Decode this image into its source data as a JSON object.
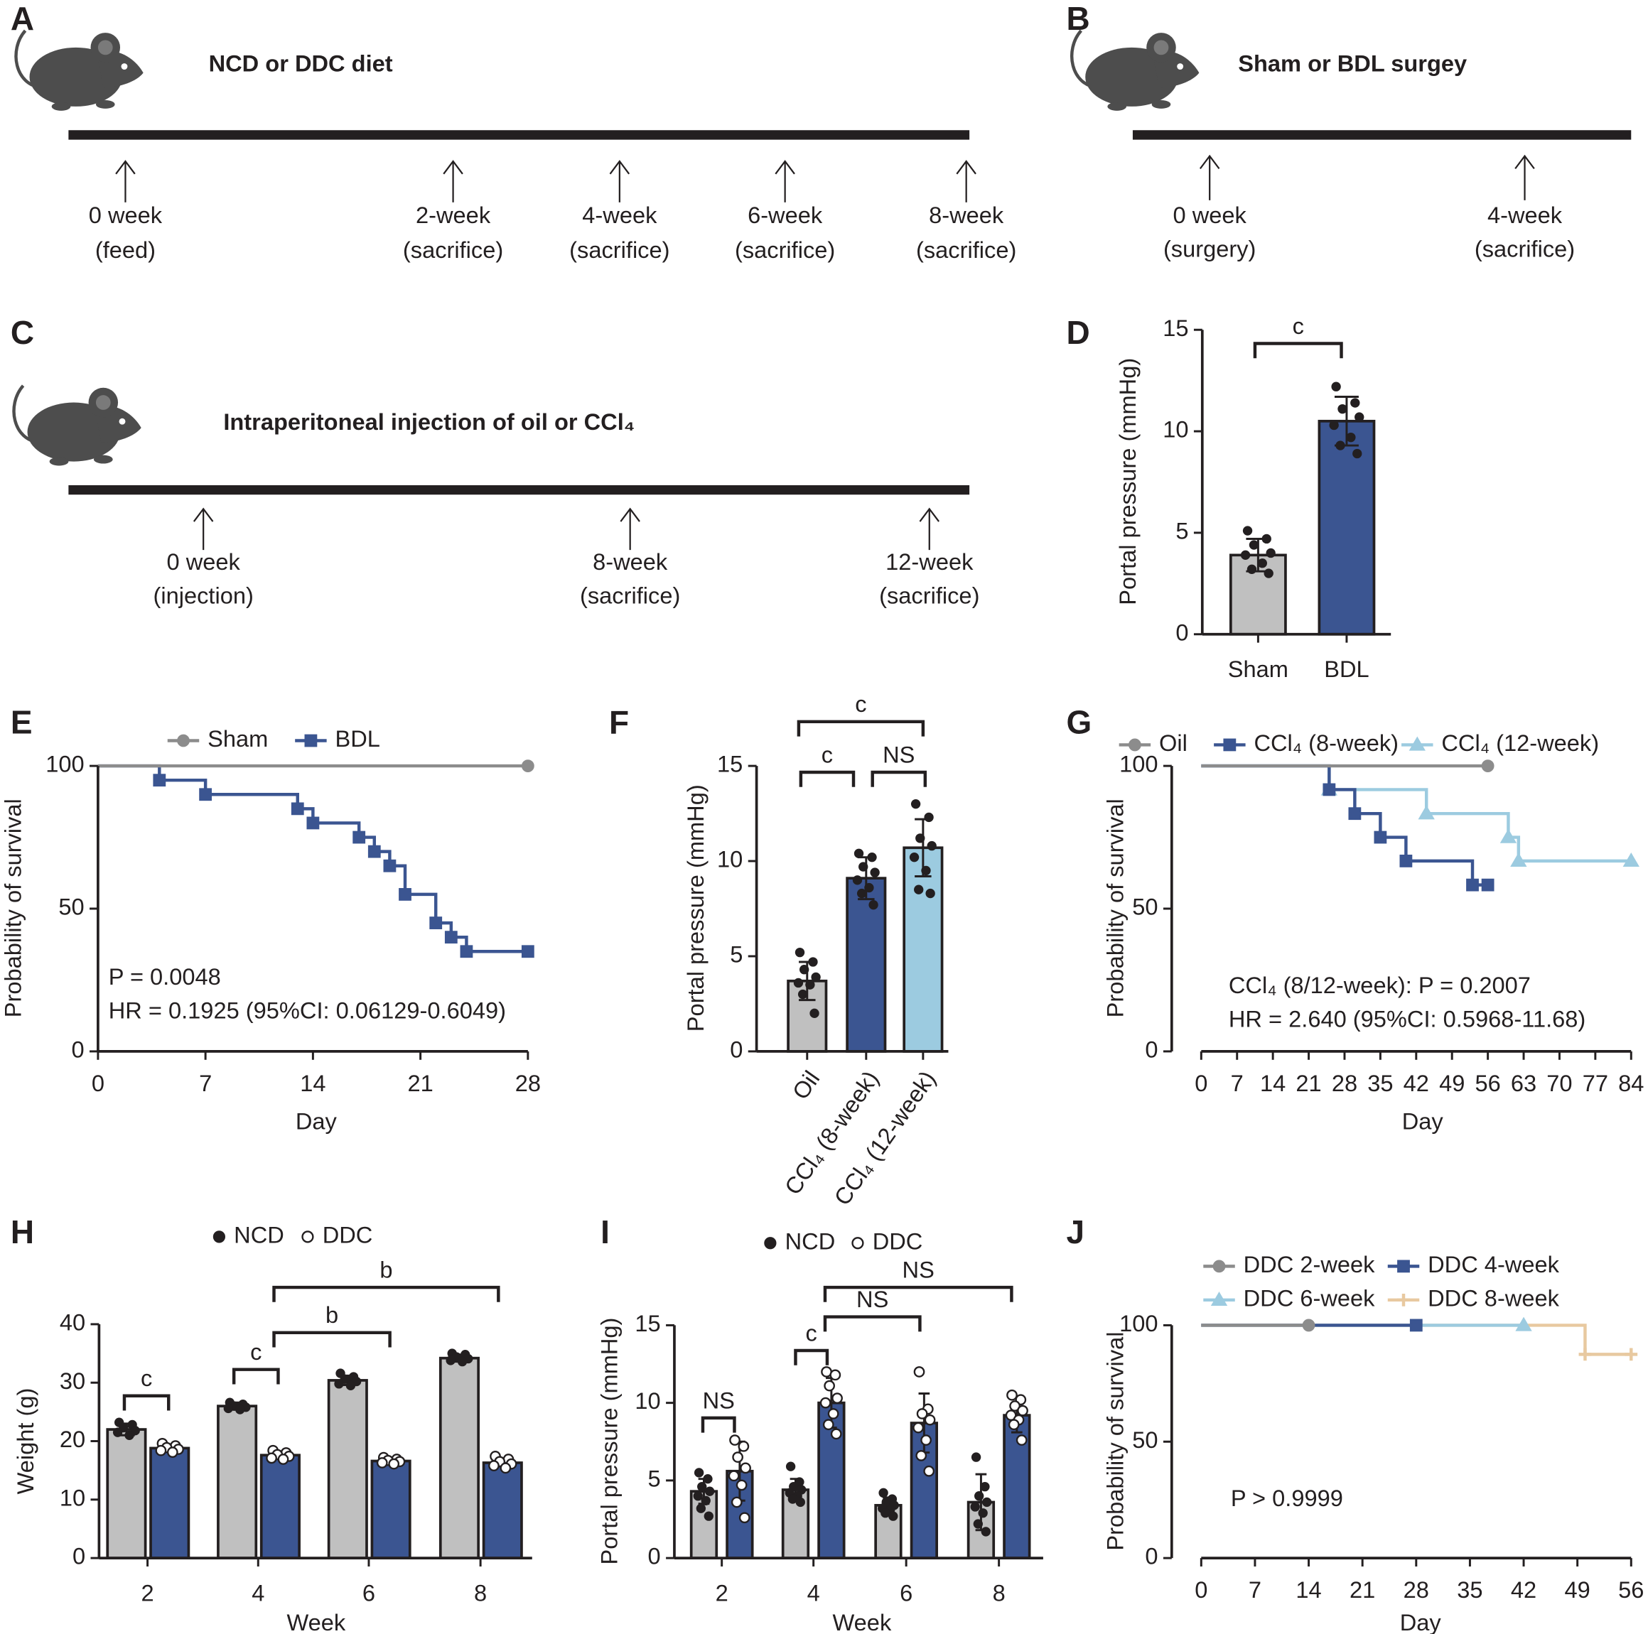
{
  "panel_labels": [
    "A",
    "B",
    "C",
    "D",
    "E",
    "F",
    "G",
    "H",
    "I",
    "J"
  ],
  "timelines": [
    {
      "title": "NCD or DDC diet",
      "events": [
        [
          "0 week",
          "(feed)"
        ],
        [
          "2-week",
          "(sacrifice)"
        ],
        [
          "4-week",
          "(sacrifice)"
        ],
        [
          "6-week",
          "(sacrifice)"
        ],
        [
          "8-week",
          "(sacrifice)"
        ]
      ]
    },
    {
      "title": "Sham or BDL surgey",
      "events": [
        [
          "0 week",
          "(surgery)"
        ],
        [
          "4-week",
          "(sacrifice)"
        ]
      ]
    },
    {
      "title": "Intraperitoneal injection of oil or CCl₄",
      "events": [
        [
          "0 week",
          "(injection)"
        ],
        [
          "8-week",
          "(sacrifice)"
        ],
        [
          "12-week",
          "(sacrifice)"
        ]
      ]
    }
  ],
  "chart_data": [
    {
      "type": "bar",
      "ylabel": "Portal pressure (mmHg)",
      "categories": [
        "Sham",
        "BDL"
      ],
      "values": [
        3.9,
        10.5
      ],
      "errors": [
        0.8,
        1.2
      ],
      "colors": [
        "#c0c0c0",
        "#3b5591"
      ],
      "points": [
        [
          5.1,
          4.7,
          4.4,
          4.0,
          3.9,
          3.5,
          3.2,
          3.0
        ],
        [
          12.2,
          11.4,
          11.1,
          10.7,
          10.3,
          9.7,
          9.3,
          8.9
        ]
      ],
      "ylim": [
        0,
        15
      ],
      "yticks": [
        0,
        5,
        10,
        15
      ],
      "significance": [
        "c"
      ]
    },
    {
      "type": "line",
      "step": true,
      "xlabel": "Day",
      "ylabel": "Probability of survival",
      "series": [
        {
          "name": "Sham",
          "color": "#8c8c8c",
          "marker": "circle",
          "x": [
            0,
            28
          ],
          "values": [
            100,
            100
          ]
        },
        {
          "name": "BDL",
          "color": "#3b5591",
          "marker": "square",
          "x": [
            0,
            4,
            7,
            13,
            14,
            17,
            18,
            19,
            20,
            22,
            23,
            24,
            28
          ],
          "values": [
            100,
            95,
            90,
            85,
            80,
            75,
            70,
            65,
            55,
            45,
            40,
            35,
            35
          ]
        }
      ],
      "xlim": [
        0,
        28
      ],
      "xticks": [
        0,
        7,
        14,
        21,
        28
      ],
      "ylim": [
        0,
        100
      ],
      "yticks": [
        0,
        50,
        100
      ],
      "annotations": [
        "P = 0.0048",
        "HR = 0.1925 (95%CI: 0.06129-0.6049)"
      ]
    },
    {
      "type": "bar",
      "ylabel": "Portal pressure (mmHg)",
      "categories": [
        "Oil",
        "CCl₄ (8-week)",
        "CCl₄ (12-week)"
      ],
      "values": [
        3.7,
        9.1,
        10.7
      ],
      "errors": [
        1.0,
        1.1,
        1.5
      ],
      "colors": [
        "#c0c0c0",
        "#3b5591",
        "#9ccbe0"
      ],
      "points": [
        [
          5.2,
          4.7,
          4.3,
          3.9,
          3.6,
          3.5,
          3.0,
          2.0
        ],
        [
          10.4,
          10.2,
          9.7,
          9.4,
          9.0,
          8.6,
          8.3,
          7.7
        ],
        [
          13.0,
          12.3,
          11.2,
          10.8,
          10.2,
          9.5,
          8.5,
          8.3
        ]
      ],
      "ylim": [
        0,
        15
      ],
      "yticks": [
        0,
        5,
        10,
        15
      ],
      "significance": [
        "c",
        "c",
        "NS"
      ]
    },
    {
      "type": "line",
      "step": true,
      "xlabel": "Day",
      "ylabel": "Probability of survival",
      "series": [
        {
          "name": "Oil",
          "color": "#8c8c8c",
          "marker": "circle",
          "x": [
            0,
            56
          ],
          "values": [
            100,
            100
          ]
        },
        {
          "name": "CCl₄ (8-week)",
          "color": "#3b5591",
          "marker": "square",
          "x": [
            0,
            25,
            30,
            35,
            40,
            53,
            56
          ],
          "values": [
            100,
            91.7,
            83.3,
            75,
            66.7,
            58.3,
            58.3
          ]
        },
        {
          "name": "CCl₄ (12-week)",
          "color": "#9ccbe0",
          "marker": "triangle",
          "x": [
            0,
            25,
            44,
            60,
            62,
            84
          ],
          "values": [
            100,
            91.7,
            83.3,
            75,
            66.7,
            66.7
          ]
        }
      ],
      "xlim": [
        0,
        84
      ],
      "xticks": [
        0,
        7,
        14,
        21,
        28,
        35,
        42,
        49,
        56,
        63,
        70,
        77,
        84
      ],
      "ylim": [
        0,
        100
      ],
      "yticks": [
        0,
        50,
        100
      ],
      "annotations": [
        "CCl₄ (8/12-week): P = 0.2007",
        "HR = 2.640 (95%CI: 0.5968-11.68)"
      ]
    },
    {
      "type": "bar",
      "xlabel": "Week",
      "ylabel": "Weight (g)",
      "categories": [
        "2",
        "4",
        "6",
        "8"
      ],
      "series": [
        {
          "name": "NCD",
          "color": "#c0c0c0",
          "point_style": "filled",
          "values": [
            22,
            26,
            30.4,
            34.2
          ],
          "errors": [
            1.0,
            0.6,
            0.8,
            0.6
          ],
          "points": [
            [
              23.2,
              22.8,
              22.3,
              21.8,
              21.5,
              21.0
            ],
            [
              26.6,
              26.3,
              26.0,
              25.8,
              25.6,
              25.4
            ],
            [
              31.6,
              31.0,
              30.6,
              30.2,
              29.8,
              29.5
            ],
            [
              35.0,
              34.8,
              34.4,
              34.1,
              33.8,
              33.6
            ]
          ]
        },
        {
          "name": "DDC",
          "color": "#3b5591",
          "point_style": "open",
          "values": [
            18.8,
            17.6,
            16.6,
            16.3
          ],
          "errors": [
            0.5,
            0.5,
            0.4,
            0.6
          ],
          "points": [
            [
              19.6,
              19.2,
              18.9,
              18.6,
              18.4,
              18.1
            ],
            [
              18.4,
              18.0,
              17.7,
              17.4,
              17.1,
              16.9
            ],
            [
              17.2,
              16.9,
              16.7,
              16.5,
              16.3,
              16.1
            ],
            [
              17.4,
              16.9,
              16.5,
              16.1,
              15.8,
              15.4
            ]
          ]
        }
      ],
      "ylim": [
        0,
        40
      ],
      "yticks": [
        0,
        10,
        20,
        30,
        40
      ],
      "significance": [
        "c",
        "c",
        "b",
        "b"
      ]
    },
    {
      "type": "bar",
      "xlabel": "Week",
      "ylabel": "Portal pressure (mmHg)",
      "categories": [
        "2",
        "4",
        "6",
        "8"
      ],
      "series": [
        {
          "name": "NCD",
          "color": "#c0c0c0",
          "point_style": "filled",
          "values": [
            4.3,
            4.4,
            3.4,
            3.6
          ],
          "errors": [
            0.8,
            0.7,
            0.5,
            1.8
          ],
          "points": [
            [
              5.5,
              5.1,
              4.6,
              4.3,
              4.0,
              3.7,
              3.2,
              2.7
            ],
            [
              5.9,
              4.9,
              4.6,
              4.4,
              4.2,
              4.0,
              3.8,
              3.6
            ],
            [
              4.2,
              3.8,
              3.6,
              3.4,
              3.2,
              3.1,
              2.9,
              2.7
            ],
            [
              6.5,
              4.6,
              4.0,
              3.6,
              3.3,
              2.9,
              2.2,
              1.7
            ]
          ]
        },
        {
          "name": "DDC",
          "color": "#3b5591",
          "point_style": "open",
          "values": [
            5.6,
            10.0,
            8.7,
            9.2
          ],
          "errors": [
            1.9,
            1.6,
            1.9,
            1.1
          ],
          "points": [
            [
              7.6,
              7.2,
              6.5,
              5.8,
              5.3,
              4.7,
              3.6,
              2.6
            ],
            [
              12.0,
              11.8,
              11.1,
              10.3,
              10.0,
              9.3,
              8.6,
              8.0
            ],
            [
              12.0,
              9.6,
              9.3,
              8.9,
              8.4,
              7.6,
              6.6,
              5.6
            ],
            [
              10.5,
              10.2,
              9.8,
              9.5,
              9.2,
              8.9,
              8.6,
              7.6
            ]
          ]
        }
      ],
      "ylim": [
        0,
        15
      ],
      "yticks": [
        0,
        5,
        10,
        15
      ],
      "significance": [
        "NS",
        "c",
        "NS",
        "NS"
      ]
    },
    {
      "type": "line",
      "step": true,
      "xlabel": "Day",
      "ylabel": "Probability of survival",
      "series": [
        {
          "name": "DDC 2-week",
          "color": "#8c8c8c",
          "marker": "circle",
          "x": [
            0,
            14
          ],
          "values": [
            100,
            100
          ]
        },
        {
          "name": "DDC 4-week",
          "color": "#3b5591",
          "marker": "square",
          "x": [
            0,
            28
          ],
          "values": [
            100,
            100
          ]
        },
        {
          "name": "DDC 6-week",
          "color": "#9ccbe0",
          "marker": "triangle",
          "x": [
            0,
            42
          ],
          "values": [
            100,
            100
          ]
        },
        {
          "name": "DDC 8-week",
          "color": "#e8c9a0",
          "marker": "cross",
          "x": [
            0,
            50,
            56
          ],
          "values": [
            100,
            87.5,
            87.5
          ]
        }
      ],
      "xlim": [
        0,
        56
      ],
      "xticks": [
        0,
        7,
        14,
        21,
        28,
        35,
        42,
        49,
        56
      ],
      "ylim": [
        0,
        100
      ],
      "yticks": [
        0,
        50,
        100
      ],
      "annotations": [
        "P > 0.9999"
      ]
    }
  ]
}
